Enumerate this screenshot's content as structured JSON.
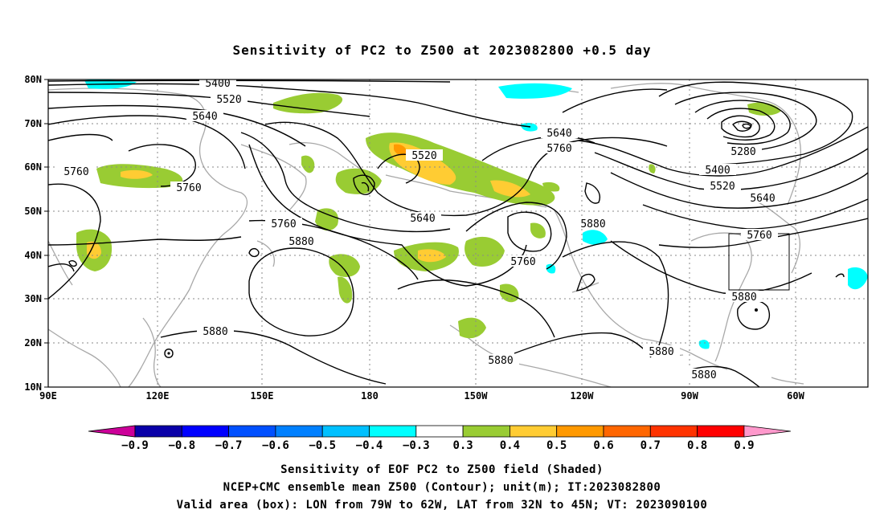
{
  "title": "Sensitivity of PC2 to Z500 at 2023082800 +0.5 day",
  "lat_ticks": [
    "80N",
    "70N",
    "60N",
    "50N",
    "40N",
    "30N",
    "20N",
    "10N"
  ],
  "lon_ticks": [
    "90E",
    "120E",
    "150E",
    "180",
    "150W",
    "120W",
    "90W",
    "60W"
  ],
  "contour_labels": [
    {
      "text": "5400"
    },
    {
      "text": "5520"
    },
    {
      "text": "5640"
    },
    {
      "text": "5760"
    },
    {
      "text": "5760"
    },
    {
      "text": "5520"
    },
    {
      "text": "5640"
    },
    {
      "text": "5760"
    },
    {
      "text": "5880"
    },
    {
      "text": "5640"
    },
    {
      "text": "5760"
    },
    {
      "text": "5880"
    },
    {
      "text": "5280"
    },
    {
      "text": "5400"
    },
    {
      "text": "5520"
    },
    {
      "text": "5640"
    },
    {
      "text": "5760"
    },
    {
      "text": "5880"
    },
    {
      "text": "5880"
    },
    {
      "text": "5880"
    },
    {
      "text": "5880"
    },
    {
      "text": "5880"
    }
  ],
  "colorbar": {
    "labels": [
      "−0.9",
      "−0.8",
      "−0.7",
      "−0.6",
      "−0.5",
      "−0.4",
      "−0.3",
      "0.3",
      "0.4",
      "0.5",
      "0.6",
      "0.7",
      "0.8",
      "0.9"
    ],
    "colors": [
      "#0a00a8",
      "#0000ff",
      "#0050ff",
      "#0080ff",
      "#00c0ff",
      "#00ffff",
      "#ffffff",
      "#99cc33",
      "#ffcc33",
      "#ff9900",
      "#ff6600",
      "#ff3300",
      "#ff0000"
    ],
    "low_end": "#cc0099",
    "high_end": "#ff99cc"
  },
  "colors": {
    "positive_low": "#99cc33",
    "positive_mid": "#ffcc33",
    "positive_high": "#ff9900",
    "negative": "#00ffff",
    "coast": "#a8a8a8"
  },
  "caption": [
    "Sensitivity of EOF PC2 to Z500 field (Shaded)",
    "NCEP+CMC ensemble mean Z500 (Contour); unit(m); IT:2023082800",
    "Valid area (box): LON from 79W to 62W, LAT from 32N to 45N; VT: 2023090100"
  ]
}
